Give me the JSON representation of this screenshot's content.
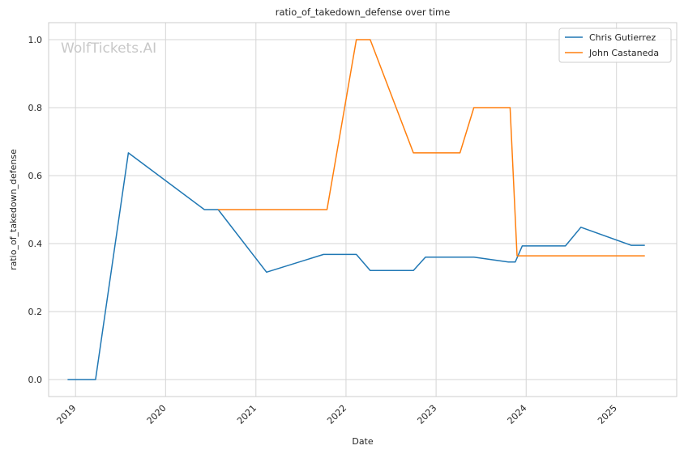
{
  "chart_data": {
    "type": "line",
    "title": "ratio_of_takedown_defense over time",
    "xlabel": "Date",
    "ylabel": "ratio_of_takedown_defense",
    "watermark": "WolfTickets.AI",
    "x_ticks": [
      "2019",
      "2020",
      "2021",
      "2022",
      "2023",
      "2024",
      "2025"
    ],
    "y_ticks": [
      "0.0",
      "0.2",
      "0.4",
      "0.6",
      "0.8",
      "1.0"
    ],
    "xlim": [
      "2018-09-14",
      "2025-09-02"
    ],
    "ylim": [
      -0.05,
      1.05
    ],
    "grid": true,
    "legend_position": "top-right",
    "series": [
      {
        "name": "Chris Gutierrez",
        "color": "#1f77b4",
        "points": [
          {
            "x": "2018-11-30",
            "y": 0.0
          },
          {
            "x": "2019-03-23",
            "y": 0.0
          },
          {
            "x": "2019-08-03",
            "y": 0.667
          },
          {
            "x": "2020-06-06",
            "y": 0.5
          },
          {
            "x": "2020-08-01",
            "y": 0.5
          },
          {
            "x": "2021-02-13",
            "y": 0.316
          },
          {
            "x": "2021-10-02",
            "y": 0.368
          },
          {
            "x": "2022-02-12",
            "y": 0.368
          },
          {
            "x": "2022-04-09",
            "y": 0.321
          },
          {
            "x": "2022-10-01",
            "y": 0.321
          },
          {
            "x": "2022-11-19",
            "y": 0.36
          },
          {
            "x": "2023-06-03",
            "y": 0.36
          },
          {
            "x": "2023-10-21",
            "y": 0.346
          },
          {
            "x": "2023-11-18",
            "y": 0.346
          },
          {
            "x": "2023-12-16",
            "y": 0.393
          },
          {
            "x": "2024-06-08",
            "y": 0.393
          },
          {
            "x": "2024-08-10",
            "y": 0.448
          },
          {
            "x": "2025-03-01",
            "y": 0.395
          },
          {
            "x": "2025-04-26",
            "y": 0.395
          }
        ]
      },
      {
        "name": "John Castaneda",
        "color": "#ff7f0e",
        "points": [
          {
            "x": "2020-08-01",
            "y": 0.5
          },
          {
            "x": "2021-10-16",
            "y": 0.5
          },
          {
            "x": "2022-02-12",
            "y": 1.0
          },
          {
            "x": "2022-04-09",
            "y": 1.0
          },
          {
            "x": "2022-10-01",
            "y": 0.667
          },
          {
            "x": "2023-04-08",
            "y": 0.667
          },
          {
            "x": "2023-06-03",
            "y": 0.8
          },
          {
            "x": "2023-10-28",
            "y": 0.8
          },
          {
            "x": "2023-11-25",
            "y": 0.364
          },
          {
            "x": "2025-04-26",
            "y": 0.364
          }
        ]
      }
    ]
  }
}
